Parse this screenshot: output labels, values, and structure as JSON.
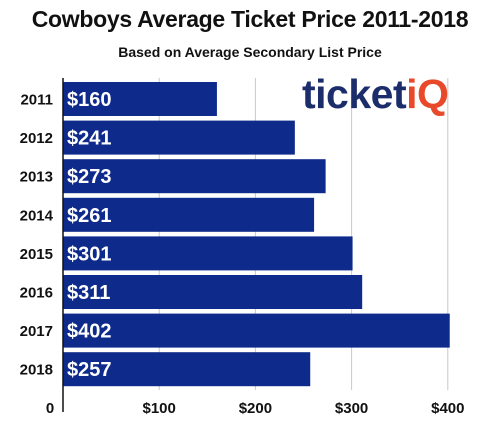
{
  "chart_data": {
    "type": "bar",
    "orientation": "horizontal",
    "title": "Cowboys Average Ticket Price 2011-2018",
    "subtitle": "Based on Average Secondary List Price",
    "xlabel": "",
    "ylabel": "",
    "categories": [
      "2011",
      "2012",
      "2013",
      "2014",
      "2015",
      "2016",
      "2017",
      "2018"
    ],
    "values": [
      160,
      241,
      273,
      261,
      301,
      311,
      402,
      257
    ],
    "data_labels": [
      "$160",
      "$241",
      "$273",
      "$261",
      "$301",
      "$311",
      "$402",
      "$257"
    ],
    "x_ticks": [
      {
        "value": 0,
        "label": "0"
      },
      {
        "value": 100,
        "label": "$100"
      },
      {
        "value": 200,
        "label": "$200"
      },
      {
        "value": 300,
        "label": "$300"
      },
      {
        "value": 400,
        "label": "$400"
      }
    ],
    "xlim": [
      0,
      425
    ],
    "grid": true,
    "bar_color": "#0e2a8a",
    "data_label_color": "#ffffff"
  },
  "logo": {
    "text_main": "ticket",
    "text_accent": "iQ",
    "main_color": "#1c2d6b",
    "accent_color": "#e8492b"
  }
}
